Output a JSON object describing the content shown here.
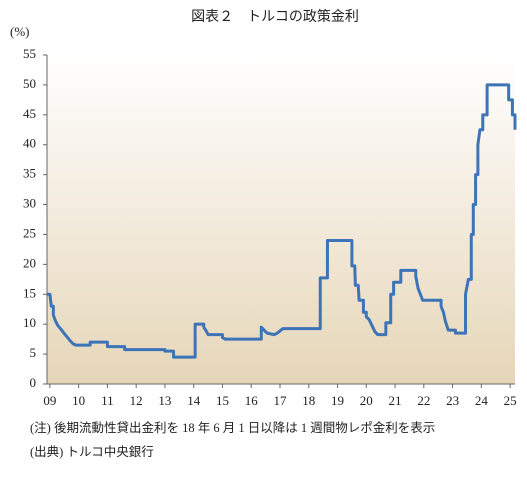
{
  "chart_data": {
    "type": "line",
    "title": "図表２　トルコの政策金利",
    "ylabel": "(%)",
    "notes": [
      "(注) 後期流動性貸出金利を 18 年 6 月 1 日以降は 1 週間物レポ金利を表示",
      "(出典) トルコ中央銀行"
    ],
    "x": [
      2008.9,
      2009.0,
      2009.05,
      2009.12,
      2009.12,
      2009.2,
      2009.28,
      2009.37,
      2009.45,
      2009.53,
      2009.62,
      2009.7,
      2009.8,
      2009.9,
      2010.4,
      2010.4,
      2011.0,
      2011.0,
      2011.6,
      2011.6,
      2013.0,
      2013.0,
      2013.3,
      2013.3,
      2014.05,
      2014.05,
      2014.35,
      2014.35,
      2014.45,
      2014.5,
      2015.0,
      2015.0,
      2015.1,
      2016.35,
      2016.35,
      2016.45,
      2016.55,
      2016.8,
      2016.9,
      2017.1,
      2018.4,
      2018.4,
      2018.65,
      2018.65,
      2019.5,
      2019.5,
      2019.6,
      2019.62,
      2019.72,
      2019.75,
      2019.9,
      2019.9,
      2020.0,
      2020.0,
      2020.1,
      2020.2,
      2020.3,
      2020.4,
      2020.68,
      2020.68,
      2020.85,
      2020.85,
      2020.95,
      2020.95,
      2021.2,
      2021.2,
      2021.72,
      2021.72,
      2021.8,
      2021.88,
      2021.96,
      2022.6,
      2022.6,
      2022.68,
      2022.75,
      2022.85,
      2023.1,
      2023.1,
      2023.45,
      2023.45,
      2023.55,
      2023.65,
      2023.65,
      2023.72,
      2023.72,
      2023.8,
      2023.8,
      2023.88,
      2023.88,
      2023.95,
      2024.05,
      2024.05,
      2024.2,
      2024.2,
      2024.95,
      2024.95,
      2025.08,
      2025.08,
      2025.17,
      2025.17
    ],
    "series": [
      {
        "color": "#3d74b8",
        "values": [
          15,
          15,
          13,
          13,
          11.5,
          10.5,
          9.75,
          9.25,
          8.75,
          8.25,
          7.75,
          7.25,
          6.75,
          6.5,
          6.5,
          7,
          7,
          6.25,
          6.25,
          5.75,
          5.75,
          5.5,
          5.5,
          4.5,
          4.5,
          10,
          10,
          9.5,
          8.75,
          8.25,
          8.25,
          7.75,
          7.5,
          7.5,
          9.5,
          9,
          8.5,
          8.25,
          8.5,
          9.25,
          9.25,
          17.75,
          17.75,
          24,
          24,
          19.75,
          19.75,
          16.5,
          16.5,
          14,
          14,
          12,
          12,
          11.25,
          10.75,
          9.75,
          8.75,
          8.25,
          8.25,
          10.25,
          10.25,
          15,
          15,
          17,
          17,
          19,
          19,
          18,
          16,
          15,
          14,
          14,
          13,
          12,
          10.5,
          9,
          9,
          8.5,
          8.5,
          15,
          17.5,
          17.5,
          25,
          25,
          30,
          30,
          35,
          35,
          40,
          42.5,
          42.5,
          45,
          45,
          50,
          50,
          47.5,
          47.5,
          45,
          45,
          42.5
        ]
      }
    ],
    "xlim": [
      2008.9,
      2025.17
    ],
    "xticks": [
      {
        "value": 2009,
        "label": "09"
      },
      {
        "value": 2010,
        "label": "10"
      },
      {
        "value": 2011,
        "label": "11"
      },
      {
        "value": 2012,
        "label": "12"
      },
      {
        "value": 2013,
        "label": "13"
      },
      {
        "value": 2014,
        "label": "14"
      },
      {
        "value": 2015,
        "label": "15"
      },
      {
        "value": 2016,
        "label": "16"
      },
      {
        "value": 2017,
        "label": "17"
      },
      {
        "value": 2018,
        "label": "18"
      },
      {
        "value": 2019,
        "label": "19"
      },
      {
        "value": 2020,
        "label": "20"
      },
      {
        "value": 2021,
        "label": "21"
      },
      {
        "value": 2022,
        "label": "22"
      },
      {
        "value": 2023,
        "label": "23"
      },
      {
        "value": 2024,
        "label": "24"
      },
      {
        "value": 2025,
        "label": "25"
      }
    ],
    "ylim": [
      0,
      55
    ],
    "yticks": [
      0,
      5,
      10,
      15,
      20,
      25,
      30,
      35,
      40,
      45,
      50,
      55
    ],
    "grid": false
  }
}
